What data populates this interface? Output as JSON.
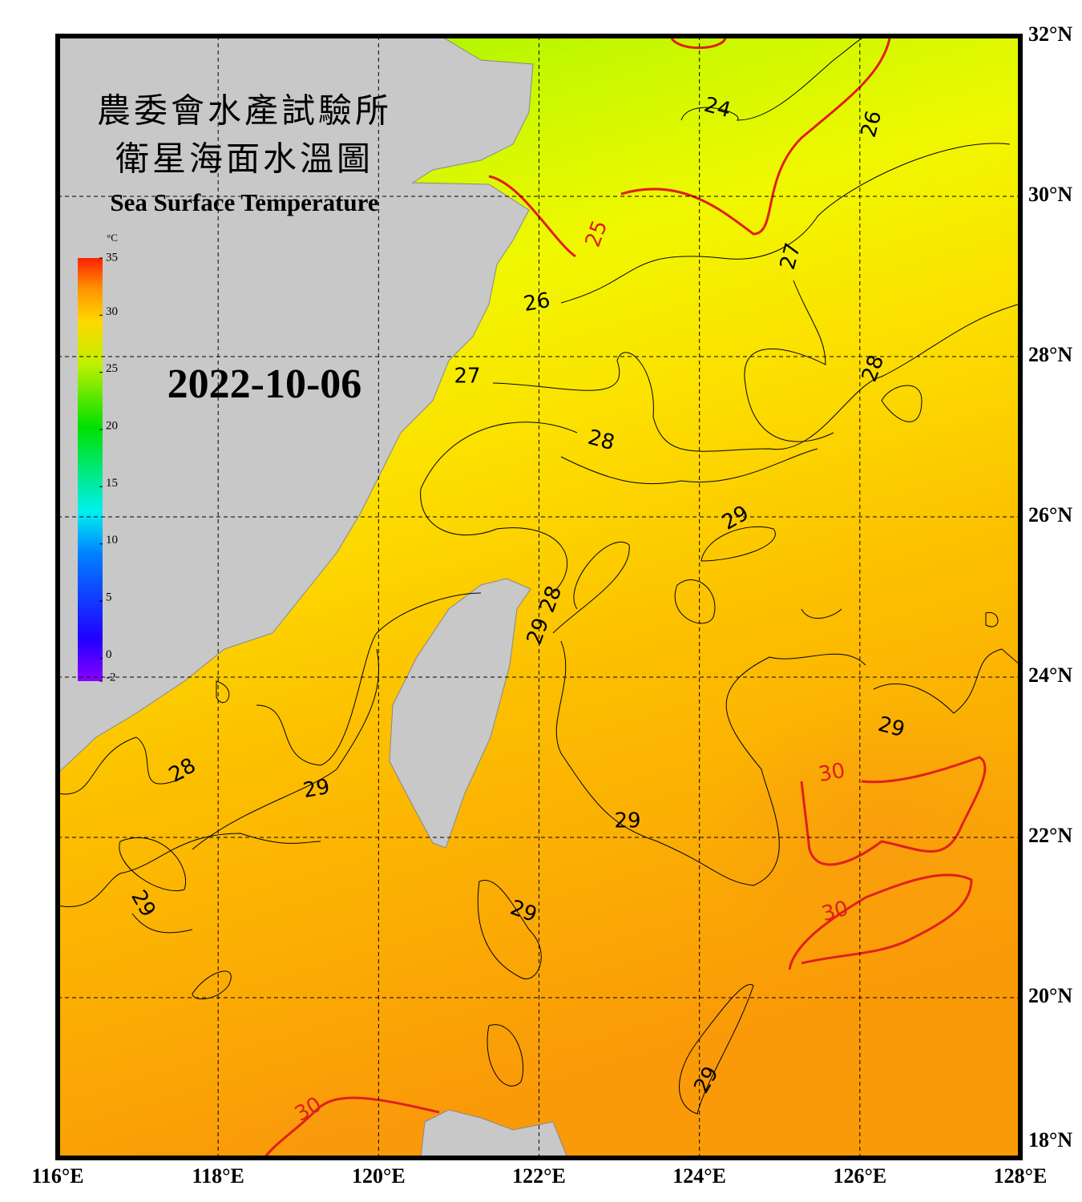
{
  "map": {
    "title_lines": [
      "農委會水產試驗所",
      "衛星海面水溫圖"
    ],
    "subtitle": "Sea Surface Temperature",
    "date": "2022-10-06",
    "colorbar": {
      "unit": "°C",
      "ticks": [
        35,
        30,
        25,
        20,
        15,
        10,
        5,
        0,
        -2
      ],
      "lim": [
        -2,
        35
      ]
    },
    "xlim": [
      116,
      128
    ],
    "xticks": [
      {
        "value": 116,
        "label": "116°E"
      },
      {
        "value": 118,
        "label": "118°E"
      },
      {
        "value": 120,
        "label": "120°E"
      },
      {
        "value": 122,
        "label": "122°E"
      },
      {
        "value": 124,
        "label": "124°E"
      },
      {
        "value": 126,
        "label": "126°E"
      },
      {
        "value": 128,
        "label": "128°E"
      }
    ],
    "ylim": [
      18,
      32
    ],
    "yticks": [
      {
        "value": 18,
        "label": "18°N"
      },
      {
        "value": 20,
        "label": "20°N"
      },
      {
        "value": 22,
        "label": "22°N"
      },
      {
        "value": 24,
        "label": "24°N"
      },
      {
        "value": 26,
        "label": "26°N"
      },
      {
        "value": 28,
        "label": "28°N"
      },
      {
        "value": 30,
        "label": "30°N"
      },
      {
        "value": 32,
        "label": "32°N"
      }
    ],
    "contour_labels": [
      24,
      26,
      25,
      27,
      26,
      27,
      28,
      28,
      29,
      28,
      29,
      29,
      28,
      29,
      30,
      29,
      30,
      29,
      29,
      29,
      30
    ]
  }
}
